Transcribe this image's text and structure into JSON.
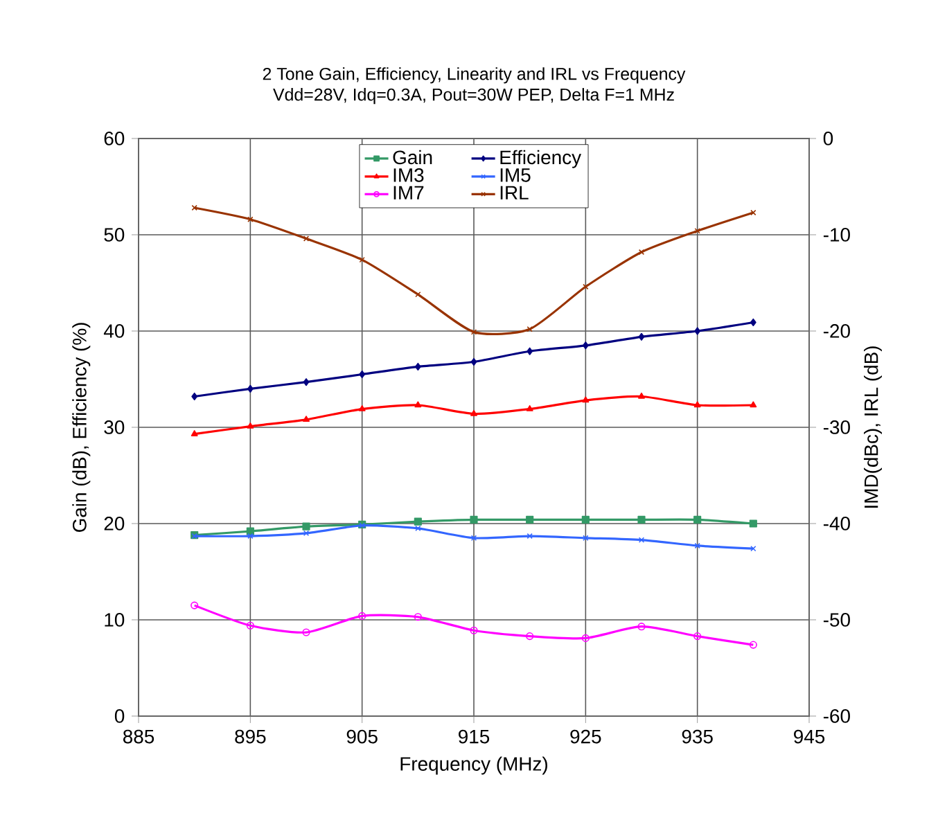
{
  "chart_data": {
    "type": "line",
    "title": "2 Tone Gain, Efficiency, Linearity and IRL vs Frequency",
    "subtitle": "Vdd=28V, Idq=0.3A, Pout=30W PEP, Delta F=1 MHz",
    "xlabel": "Frequency (MHz)",
    "ylabel": "Gain (dB), Efficiency (%)",
    "y2label": "IMD(dBc), IRL (dB)",
    "x": [
      890,
      895,
      900,
      905,
      910,
      915,
      920,
      925,
      930,
      935,
      940
    ],
    "series": [
      {
        "name": "Gain",
        "color": "#339966",
        "marker": "square",
        "values": [
          18.8,
          19.2,
          19.7,
          19.9,
          20.2,
          20.4,
          20.4,
          20.4,
          20.4,
          20.4,
          20.0
        ]
      },
      {
        "name": "Efficiency",
        "color": "#000080",
        "marker": "diamond",
        "values": [
          33.2,
          34.0,
          34.7,
          35.5,
          36.3,
          36.8,
          37.9,
          38.5,
          39.4,
          40.0,
          40.9
        ]
      },
      {
        "name": "IM3",
        "color": "#ff0000",
        "marker": "triangle",
        "axis": "y2",
        "values": [
          -30.7,
          -29.9,
          -29.2,
          -28.1,
          -27.7,
          -28.6,
          -28.1,
          -27.2,
          -26.8,
          -27.7,
          -27.7
        ]
      },
      {
        "name": "IM5",
        "color": "#3366ff",
        "marker": "cross",
        "axis": "y2",
        "values": [
          -41.3,
          -41.3,
          -41.0,
          -40.2,
          -40.5,
          -41.5,
          -41.3,
          -41.5,
          -41.7,
          -42.3,
          -42.6
        ]
      },
      {
        "name": "IM7",
        "color": "#ff00ff",
        "marker": "circle",
        "axis": "y2",
        "values": [
          -48.5,
          -50.6,
          -51.3,
          -49.6,
          -49.7,
          -51.1,
          -51.7,
          -51.9,
          -50.7,
          -51.7,
          -52.6
        ]
      },
      {
        "name": "IRL",
        "color": "#993300",
        "marker": "cross",
        "axis": "y2",
        "values": [
          -7.2,
          -8.4,
          -10.4,
          -12.6,
          -16.2,
          -20.1,
          -19.8,
          -15.4,
          -11.8,
          -9.6,
          -7.7
        ]
      }
    ],
    "xlim": [
      885,
      945
    ],
    "xticks": [
      885,
      895,
      905,
      915,
      925,
      935,
      945
    ],
    "ylim": [
      0,
      60
    ],
    "yticks": [
      0,
      10,
      20,
      30,
      40,
      50,
      60
    ],
    "y2lim": [
      -60,
      0
    ],
    "y2ticks": [
      -60,
      -50,
      -40,
      -30,
      -20,
      -10,
      0
    ],
    "grid": true,
    "legend": "top"
  }
}
